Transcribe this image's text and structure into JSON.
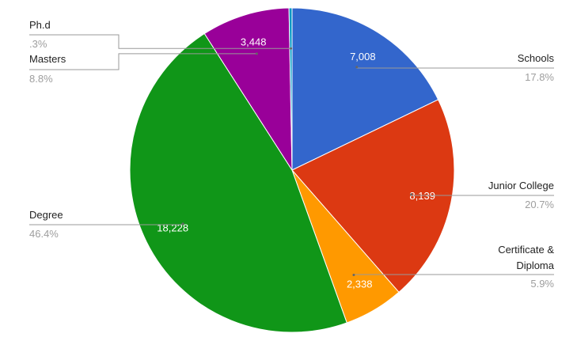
{
  "chart_data": {
    "type": "pie",
    "categories": [
      "Schools",
      "Junior College",
      "Certificate & Diploma",
      "Degree",
      "Masters",
      "Ph.d"
    ],
    "values": [
      7008,
      8139,
      2338,
      18228,
      3448,
      118
    ],
    "value_labels": [
      "7,008",
      "8,139",
      "2,338",
      "18,228",
      "3,448",
      null
    ],
    "percent_labels": [
      "17.8%",
      "20.7%",
      "5.9%",
      "46.4%",
      "8.8%",
      ".3%"
    ],
    "colors": [
      "#3366cc",
      "#dc3912",
      "#ff9900",
      "#109618",
      "#990099",
      "#0099c6"
    ]
  }
}
